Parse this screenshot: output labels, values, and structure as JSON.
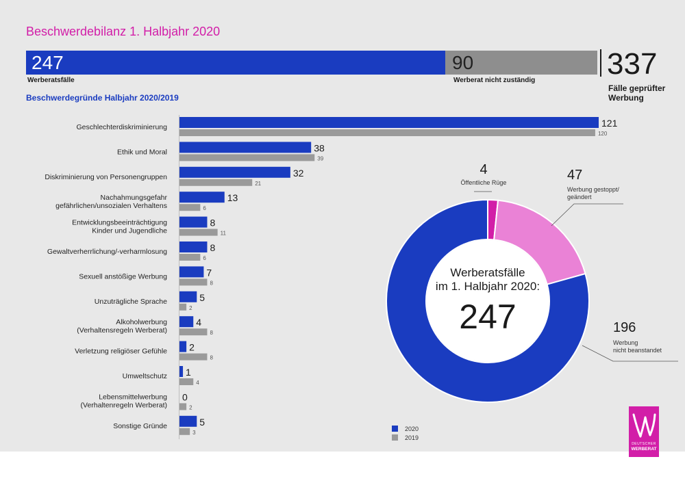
{
  "header": {
    "title": "Beschwerdebilanz 1. Halbjahr 2020",
    "totals": {
      "werberat_value": "247",
      "werberat_label": "Werberatsfälle",
      "nicht_zustaendig_value": "90",
      "nicht_zustaendig_label": "Werberat nicht zuständig",
      "gesamt_value": "337",
      "gesamt_label": "Fälle geprüfter Werbung"
    },
    "subtitle": "Beschwerdegründe Halbjahr 2020/2019"
  },
  "chart_data": [
    {
      "type": "bar",
      "orientation": "horizontal",
      "title": "Beschwerdegründe Halbjahr 2020/2019",
      "categories": [
        [
          "Geschlechterdiskriminierung"
        ],
        [
          "Ethik und Moral"
        ],
        [
          "Diskriminierung von Personengruppen"
        ],
        [
          "Nachahmungsgefahr",
          "gefährlichen/unsozialen Verhaltens"
        ],
        [
          "Entwicklungsbeeinträchtigung",
          "Kinder und Jugendliche"
        ],
        [
          "Gewaltverherrlichung/-verharmlosung"
        ],
        [
          "Sexuell anstößige Werbung"
        ],
        [
          "Unzuträgliche Sprache"
        ],
        [
          "Alkoholwerbung",
          "(Verhaltensregeln Werberat)"
        ],
        [
          "Verletzung religiöser Gefühle"
        ],
        [
          "Umweltschutz"
        ],
        [
          "Lebensmittelwerbung",
          "(Verhaltenregeln Werberat)"
        ],
        [
          "Sonstige Gründe"
        ]
      ],
      "series": [
        {
          "name": "2020",
          "color": "#1a3cc0",
          "values": [
            121,
            38,
            32,
            13,
            8,
            8,
            7,
            5,
            4,
            2,
            1,
            0,
            5
          ]
        },
        {
          "name": "2019",
          "color": "#9a9a9a",
          "values": [
            120,
            39,
            21,
            6,
            11,
            6,
            8,
            2,
            8,
            8,
            4,
            2,
            3
          ]
        }
      ],
      "xlim": [
        0,
        121
      ],
      "legend": "bottom"
    },
    {
      "type": "pie",
      "donut": true,
      "center_text": [
        "Werberatsfälle",
        "im 1. Halbjahr 2020:"
      ],
      "center_value": "247",
      "slices": [
        {
          "label": [
            "Öffentliche Rüge"
          ],
          "value": 4,
          "color": "#d21ea8"
        },
        {
          "label": [
            "Werbung gestoppt/",
            "geändert"
          ],
          "value": 47,
          "color": "#ea82d6"
        },
        {
          "label": [
            "Werbung",
            "nicht beanstandet"
          ],
          "value": 196,
          "color": "#1a3cc0"
        }
      ]
    }
  ],
  "legend": {
    "items": [
      {
        "label": "2020",
        "color": "#1a3cc0"
      },
      {
        "label": "2019",
        "color": "#9a9a9a"
      }
    ]
  },
  "logo": {
    "line1": "DEUTSCHER",
    "line2": "WERBERAT"
  }
}
